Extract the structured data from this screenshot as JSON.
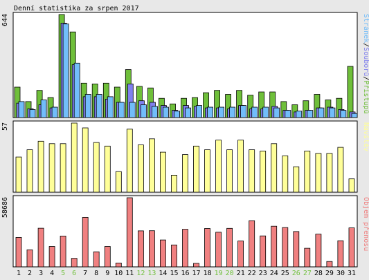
{
  "title": "Denní statistika za srpen 2017",
  "colors": {
    "background": "#e8e8e8",
    "panel": "#ffffff",
    "border": "#000000",
    "pages": "#6fbf3a",
    "files": "#8080ee",
    "hits": "#72bdfa",
    "visits": "#ffff99",
    "bandwidth": "#f08080",
    "weekday_label": "#000000",
    "weekend_label": "#6fbf3a"
  },
  "chart_data": [
    {
      "type": "bar",
      "name": "hits-pages-files",
      "ymax_label": "644",
      "ymax": 644,
      "legend": {
        "hits": "Stránek",
        "sep1": "/",
        "files": "Souborů",
        "sep2": "/",
        "pages": "Přístupů"
      },
      "categories": [
        "1",
        "2",
        "3",
        "4",
        "5",
        "6",
        "7",
        "8",
        "9",
        "10",
        "11",
        "12",
        "13",
        "14",
        "15",
        "16",
        "17",
        "18",
        "19",
        "20",
        "21",
        "22",
        "23",
        "24",
        "25",
        "26",
        "27",
        "28",
        "29",
        "30",
        "31"
      ],
      "weekend": [
        5,
        6,
        12,
        13,
        19,
        20,
        26,
        27
      ],
      "series": [
        {
          "key": "pages",
          "values": [
            190,
            100,
            170,
            125,
            644,
            535,
            215,
            210,
            215,
            190,
            300,
            195,
            185,
            120,
            85,
            120,
            125,
            155,
            170,
            145,
            170,
            140,
            160,
            160,
            100,
            80,
            105,
            145,
            110,
            120,
            320
          ]
        },
        {
          "key": "files",
          "values": [
            90,
            55,
            80,
            60,
            590,
            330,
            130,
            130,
            115,
            95,
            210,
            105,
            95,
            75,
            45,
            75,
            70,
            60,
            60,
            55,
            75,
            55,
            55,
            70,
            45,
            35,
            45,
            60,
            65,
            50,
            35
          ]
        },
        {
          "key": "hits",
          "values": [
            100,
            50,
            110,
            65,
            585,
            340,
            145,
            145,
            130,
            95,
            95,
            80,
            70,
            65,
            40,
            60,
            75,
            65,
            65,
            65,
            75,
            65,
            65,
            60,
            45,
            40,
            45,
            60,
            60,
            45,
            25
          ]
        }
      ]
    },
    {
      "type": "bar",
      "name": "visits",
      "ymax_label": "57",
      "ymax": 57,
      "legend": {
        "visits": "Návštěv"
      },
      "categories": [
        "1",
        "2",
        "3",
        "4",
        "5",
        "6",
        "7",
        "8",
        "9",
        "10",
        "11",
        "12",
        "13",
        "14",
        "15",
        "16",
        "17",
        "18",
        "19",
        "20",
        "21",
        "22",
        "23",
        "24",
        "25",
        "26",
        "27",
        "28",
        "29",
        "30",
        "31"
      ],
      "series": [
        {
          "key": "visits",
          "values": [
            29,
            35,
            42,
            40,
            40,
            57,
            53,
            41,
            38,
            17,
            52,
            39,
            44,
            33,
            14,
            31,
            38,
            35,
            43,
            35,
            43,
            35,
            34,
            40,
            30,
            21,
            34,
            32,
            32,
            37,
            11
          ]
        }
      ]
    },
    {
      "type": "bar",
      "name": "bandwidth",
      "ymax_label": "58686",
      "ymax": 58686,
      "legend": {
        "bandwidth": "Objem přenosu"
      },
      "categories": [
        "1",
        "2",
        "3",
        "4",
        "5",
        "6",
        "7",
        "8",
        "9",
        "10",
        "11",
        "12",
        "13",
        "14",
        "15",
        "16",
        "17",
        "18",
        "19",
        "20",
        "21",
        "22",
        "23",
        "24",
        "25",
        "26",
        "27",
        "28",
        "29",
        "30",
        "31"
      ],
      "series": [
        {
          "key": "bandwidth",
          "values": [
            25000,
            14500,
            32800,
            17300,
            26200,
            7200,
            42000,
            12800,
            17300,
            3300,
            58686,
            30600,
            30700,
            22800,
            18600,
            31900,
            3000,
            32600,
            29400,
            32700,
            22000,
            39200,
            26300,
            34500,
            33400,
            30000,
            15800,
            27800,
            4600,
            22200,
            33100
          ]
        }
      ]
    }
  ]
}
